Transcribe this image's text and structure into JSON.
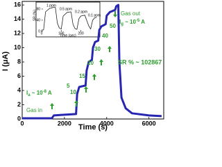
{
  "chart_data": [
    {
      "type": "line",
      "xlabel": "Time (s)",
      "ylabel": "I (μA)",
      "xlim": [
        0,
        6700
      ],
      "ylim": [
        0,
        16.5
      ],
      "xticks": [
        0,
        2000,
        4000,
        6000
      ],
      "yticks": [
        0,
        2,
        4,
        6,
        8,
        10,
        12,
        14,
        16
      ],
      "series": [
        {
          "color": "#2626b0",
          "x": [
            0,
            1400,
            1500,
            2000,
            2550,
            2600,
            2700,
            3000,
            3050,
            3150,
            3300,
            3350,
            3450,
            3600,
            3650,
            3750,
            3950,
            4000,
            4150,
            4400,
            4450,
            4550,
            4600,
            4700,
            4900,
            5200,
            6000,
            6600
          ],
          "values": [
            0.1,
            0.1,
            0.5,
            0.6,
            0.7,
            3.5,
            4.5,
            4.7,
            6.8,
            8.0,
            8.3,
            10.0,
            10.8,
            11.0,
            12.5,
            13.0,
            13.3,
            14.5,
            15.0,
            15.3,
            15.8,
            16.0,
            8.0,
            3.0,
            1.5,
            0.8,
            0.5,
            0.4
          ]
        }
      ],
      "annotations": {
        "ppm": [
          "5",
          "10",
          "15",
          "20",
          "30",
          "40",
          "50"
        ],
        "gas_in": "Gas in",
        "gas_out": "Gas out",
        "ia": [
          "I",
          "a",
          " ~ 10",
          "-8",
          " A"
        ],
        "ig": [
          "I",
          "g",
          " ~ 10",
          "-5",
          " A"
        ],
        "sr": "SR % ~ 102867"
      }
    },
    {
      "type": "line",
      "xlabel": "Time (sec)",
      "ylabel": "SR (%)",
      "xlim": [
        0,
        290
      ],
      "ylim": [
        0,
        100
      ],
      "xticks": [
        0,
        100,
        200
      ],
      "yticks": [
        0,
        40,
        80
      ],
      "series": [
        {
          "color": "#222222",
          "x": [
            0,
            10,
            20,
            40,
            60,
            70,
            80,
            90,
            100,
            110,
            130,
            150,
            160,
            170,
            180,
            190,
            200,
            220,
            240,
            250,
            260,
            270,
            280
          ],
          "values": [
            5,
            5,
            70,
            82,
            86,
            86,
            30,
            12,
            8,
            55,
            68,
            70,
            25,
            10,
            7,
            45,
            55,
            58,
            20,
            8,
            40,
            48,
            50
          ]
        }
      ],
      "annotations": {
        "ppm": [
          "1 ppm",
          "0.5 ppm",
          "0.2 ppm",
          "0.1 ppm"
        ]
      }
    }
  ]
}
